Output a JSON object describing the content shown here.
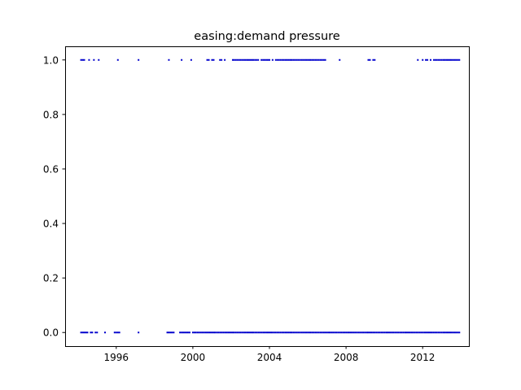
{
  "chart_data": {
    "type": "scatter",
    "title": "easing:demand pressure",
    "xlabel": "",
    "ylabel": "",
    "x_is_date": true,
    "xlim": [
      "1993-05-01",
      "2014-06-01"
    ],
    "ylim": [
      -0.05,
      1.05
    ],
    "x_ticks": [
      "1996-01-01",
      "2000-01-01",
      "2004-01-01",
      "2008-01-01",
      "2012-01-01"
    ],
    "x_tick_labels": [
      "1996",
      "2000",
      "2004",
      "2008",
      "2012"
    ],
    "y_ticks": [
      0.0,
      0.2,
      0.4,
      0.6,
      0.8,
      1.0
    ],
    "y_tick_labels": [
      "0.0",
      "0.2",
      "0.4",
      "0.6",
      "0.8",
      "1.0"
    ],
    "grid": false,
    "legend": "none",
    "marker_color": "#0000cc",
    "series": [
      {
        "y": 1,
        "x": [
          "1994-03-01",
          "1994-04-01",
          "1994-05-01",
          "1994-08-01",
          "1994-11-01",
          "1995-02-01",
          "1996-02-01",
          "1997-03-01",
          "1998-10-01",
          "1999-06-01",
          "1999-12-01",
          "2000-10-01",
          "2000-11-01",
          "2001-01-01",
          "2001-02-01",
          "2001-06-01",
          "2001-07-01",
          "2001-09-01",
          "2002-02-01",
          "2002-03-01",
          "2002-04-01",
          "2002-05-01",
          "2002-06-01",
          "2002-07-01",
          "2002-08-01",
          "2002-09-01",
          "2002-10-01",
          "2002-11-01",
          "2002-12-01",
          "2003-01-01",
          "2003-02-01",
          "2003-03-01",
          "2003-04-01",
          "2003-05-01",
          "2003-06-01",
          "2003-08-01",
          "2003-09-01",
          "2003-10-01",
          "2003-11-01",
          "2003-12-01",
          "2004-01-01",
          "2004-03-01",
          "2004-05-01",
          "2004-06-01",
          "2004-07-01",
          "2004-08-01",
          "2004-09-01",
          "2004-10-01",
          "2004-11-01",
          "2004-12-01",
          "2005-01-01",
          "2005-02-01",
          "2005-03-01",
          "2005-04-01",
          "2005-05-01",
          "2005-06-01",
          "2005-07-01",
          "2005-08-01",
          "2005-09-01",
          "2005-10-01",
          "2005-11-01",
          "2005-12-01",
          "2006-01-01",
          "2006-02-01",
          "2006-03-01",
          "2006-04-01",
          "2006-05-01",
          "2006-06-01",
          "2006-07-01",
          "2006-08-01",
          "2006-09-01",
          "2006-10-01",
          "2006-11-01",
          "2006-12-01",
          "2007-09-01",
          "2009-03-01",
          "2009-04-01",
          "2009-06-01",
          "2009-07-01",
          "2011-10-01",
          "2012-01-01",
          "2012-03-01",
          "2012-04-01",
          "2012-06-01",
          "2012-08-01",
          "2012-09-01",
          "2012-10-01",
          "2012-11-01",
          "2012-12-01",
          "2013-01-01",
          "2013-02-01",
          "2013-03-01",
          "2013-04-01",
          "2013-05-01",
          "2013-06-01",
          "2013-07-01",
          "2013-08-01",
          "2013-09-01",
          "2013-10-01",
          "2013-11-01",
          "2013-12-01"
        ]
      },
      {
        "y": 0,
        "x_ranges": [
          [
            "1994-03-01",
            "1994-07-01"
          ],
          [
            "1994-09-01",
            "1994-10-01"
          ],
          [
            "1994-12-01",
            "1995-01-01"
          ],
          [
            "1995-06-01",
            "1995-06-01"
          ],
          [
            "1995-12-01",
            "1996-03-01"
          ],
          [
            "1997-03-01",
            "1997-03-01"
          ],
          [
            "1998-09-01",
            "1999-01-01"
          ],
          [
            "1999-05-01",
            "1999-11-01"
          ],
          [
            "2000-01-01",
            "2013-12-01"
          ]
        ]
      }
    ]
  }
}
